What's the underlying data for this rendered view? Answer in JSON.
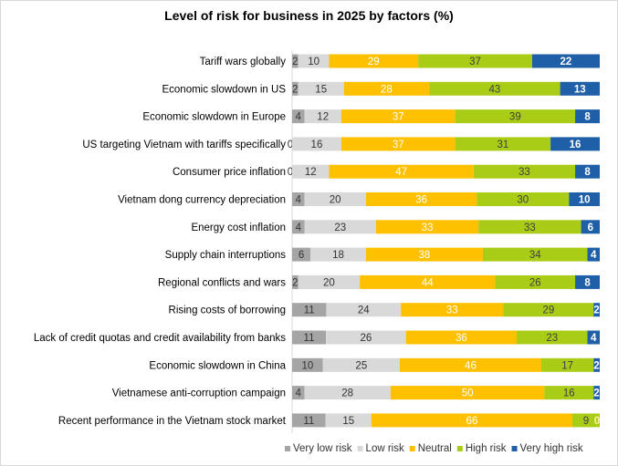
{
  "chart_data": {
    "type": "bar",
    "orientation": "horizontal",
    "stacked": "100%",
    "title": "Level of risk for business in 2025 by factors (%)",
    "legend_position": "bottom-right",
    "grid": false,
    "categories": [
      "Tariff wars globally",
      "Economic slowdown in US",
      "Economic slowdown in Europe",
      "US targeting Vietnam with tariffs specifically",
      "Consumer price inflation",
      "Vietnam dong currency depreciation",
      "Energy cost inflation",
      "Supply chain interruptions",
      "Regional conflicts and wars",
      "Rising costs of borrowing",
      "Lack of credit quotas and credit availability from banks",
      "Economic slowdown in China",
      "Vietnamese anti-corruption campaign",
      "Recent performance in the Vietnam stock market"
    ],
    "series": [
      {
        "name": "Very low risk",
        "color": "#a5a5a5",
        "label_color": "#333333",
        "values": [
          2,
          2,
          4,
          0,
          0,
          4,
          4,
          6,
          2,
          11,
          11,
          10,
          4,
          11
        ]
      },
      {
        "name": "Low risk",
        "color": "#d9d9d9",
        "label_color": "#333333",
        "values": [
          10,
          15,
          12,
          16,
          12,
          20,
          23,
          18,
          20,
          24,
          26,
          25,
          28,
          15
        ]
      },
      {
        "name": "Neutral",
        "color": "#ffc000",
        "label_color": "#ffffff",
        "values": [
          29,
          28,
          37,
          37,
          47,
          36,
          33,
          38,
          44,
          33,
          36,
          46,
          50,
          66
        ]
      },
      {
        "name": "High risk",
        "color": "#a9cc17",
        "label_color": "#404040",
        "values": [
          37,
          43,
          39,
          31,
          33,
          30,
          33,
          34,
          26,
          29,
          23,
          17,
          16,
          9
        ]
      },
      {
        "name": "Very high risk",
        "color": "#1f5fa8",
        "label_color": "#ffffff",
        "values": [
          22,
          13,
          8,
          16,
          8,
          10,
          6,
          4,
          8,
          2,
          4,
          2,
          2,
          0
        ]
      }
    ]
  }
}
